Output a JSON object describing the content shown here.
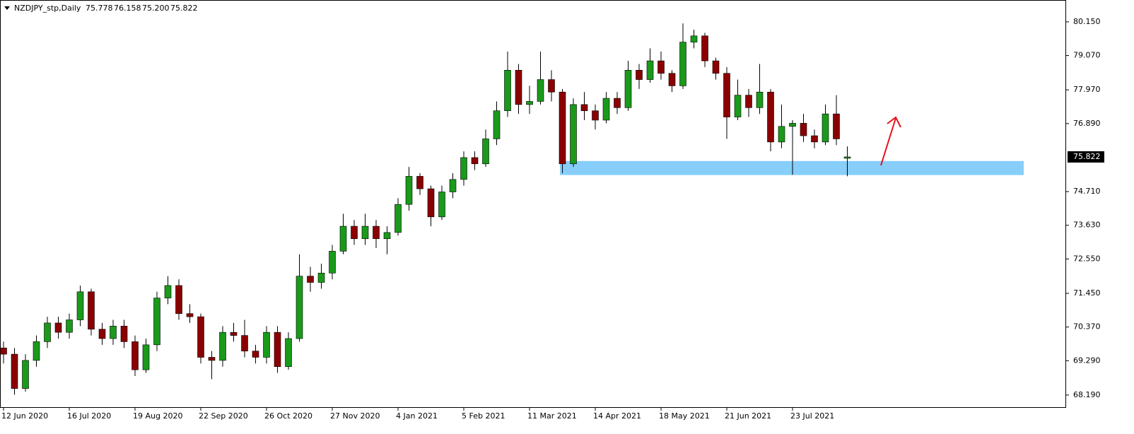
{
  "chart_data": {
    "type": "candlestick",
    "header": {
      "symbol": "NZDJPY_stp,Daily",
      "ohlc": [
        "75.778",
        "76.158",
        "75.200",
        "75.822"
      ]
    },
    "categories": [
      "12 Jun 2020",
      null,
      null,
      null,
      null,
      null,
      "16 Jul 2020",
      null,
      null,
      null,
      null,
      null,
      "19 Aug 2020",
      null,
      null,
      null,
      null,
      null,
      "22 Sep 2020",
      null,
      null,
      null,
      null,
      null,
      "26 Oct 2020",
      null,
      null,
      null,
      null,
      null,
      "27 Nov 2020",
      null,
      null,
      null,
      null,
      null,
      "4 Jan 2021",
      null,
      null,
      null,
      null,
      null,
      "5 Feb 2021",
      null,
      null,
      null,
      null,
      null,
      "11 Mar 2021",
      null,
      null,
      null,
      null,
      null,
      "14 Apr 2021",
      null,
      null,
      null,
      null,
      null,
      "18 May 2021",
      null,
      null,
      null,
      null,
      null,
      "21 Jun 2021",
      null,
      null,
      null,
      null,
      null,
      "23 Jul 2021",
      null,
      null,
      null,
      null,
      null
    ],
    "open": [
      69.7,
      69.5,
      68.4,
      69.3,
      69.9,
      70.5,
      70.2,
      70.6,
      71.5,
      70.3,
      70.0,
      70.4,
      69.9,
      69.0,
      69.8,
      71.3,
      71.7,
      70.8,
      70.7,
      69.4,
      69.3,
      70.2,
      70.1,
      69.6,
      69.4,
      70.2,
      69.1,
      70.0,
      72.0,
      71.8,
      72.1,
      72.8,
      73.6,
      73.2,
      73.6,
      73.2,
      73.4,
      74.3,
      75.2,
      74.8,
      73.9,
      74.7,
      75.1,
      75.8,
      75.6,
      76.4,
      77.3,
      78.6,
      77.5,
      77.6,
      78.3,
      77.9,
      75.6,
      77.5,
      77.3,
      77.0,
      77.7,
      77.4,
      78.6,
      78.3,
      78.9,
      78.5,
      78.1,
      79.5,
      79.7,
      78.9,
      78.5,
      77.1,
      77.8,
      77.4,
      77.9,
      76.3,
      76.8,
      76.9,
      76.5,
      76.3,
      77.2,
      75.778
    ],
    "high": [
      69.9,
      69.7,
      69.5,
      70.1,
      70.7,
      70.7,
      70.8,
      71.7,
      71.6,
      70.5,
      70.6,
      70.6,
      70.1,
      70.0,
      71.5,
      72.0,
      71.9,
      71.1,
      70.8,
      69.6,
      70.4,
      70.5,
      70.6,
      69.8,
      70.4,
      70.4,
      70.2,
      72.7,
      72.3,
      72.4,
      73.0,
      74.0,
      73.8,
      74.0,
      73.8,
      73.6,
      74.5,
      75.5,
      75.3,
      74.9,
      74.9,
      75.3,
      76.0,
      76.0,
      76.7,
      77.6,
      79.2,
      78.8,
      78.1,
      79.2,
      78.6,
      78.0,
      77.7,
      77.9,
      77.5,
      77.9,
      77.9,
      78.9,
      78.8,
      79.3,
      79.2,
      78.6,
      80.1,
      79.9,
      79.8,
      79.0,
      78.7,
      78.3,
      78.0,
      78.8,
      78.0,
      77.5,
      77.0,
      77.2,
      76.7,
      77.5,
      77.8,
      76.158
    ],
    "low": [
      69.2,
      68.2,
      68.3,
      69.1,
      69.7,
      70.0,
      70.0,
      70.4,
      70.1,
      69.8,
      69.8,
      69.7,
      68.8,
      68.9,
      69.6,
      71.1,
      70.6,
      70.5,
      69.2,
      68.7,
      69.1,
      69.9,
      69.4,
      69.2,
      69.2,
      68.9,
      69.0,
      69.9,
      71.5,
      71.6,
      71.9,
      72.7,
      73.0,
      73.0,
      72.9,
      72.7,
      73.3,
      74.1,
      74.6,
      73.6,
      73.8,
      74.5,
      74.9,
      75.4,
      75.5,
      76.2,
      77.1,
      77.2,
      77.2,
      77.5,
      77.6,
      75.3,
      75.5,
      77.0,
      76.7,
      76.9,
      77.2,
      77.3,
      78.0,
      78.2,
      78.3,
      77.9,
      78.0,
      79.3,
      78.7,
      78.3,
      76.4,
      77.0,
      77.1,
      77.2,
      76.0,
      76.1,
      75.25,
      76.3,
      76.1,
      76.2,
      76.2,
      75.2
    ],
    "close": [
      69.5,
      68.4,
      69.3,
      69.9,
      70.5,
      70.2,
      70.6,
      71.5,
      70.3,
      70.0,
      70.4,
      69.9,
      69.0,
      69.8,
      71.3,
      71.7,
      70.8,
      70.7,
      69.4,
      69.3,
      70.2,
      70.1,
      69.6,
      69.4,
      70.2,
      69.1,
      70.0,
      72.0,
      71.8,
      72.1,
      72.8,
      73.6,
      73.2,
      73.6,
      73.2,
      73.4,
      74.3,
      75.2,
      74.8,
      73.9,
      74.7,
      75.1,
      75.8,
      75.6,
      76.4,
      77.3,
      78.6,
      77.5,
      77.6,
      78.3,
      77.9,
      75.6,
      77.5,
      77.3,
      77.0,
      77.7,
      77.4,
      78.6,
      78.3,
      78.9,
      78.5,
      78.1,
      79.5,
      79.7,
      78.9,
      78.5,
      77.1,
      77.8,
      77.4,
      77.9,
      76.3,
      76.8,
      76.9,
      76.5,
      76.3,
      77.2,
      76.4,
      75.822
    ],
    "up_color": "#1a9a1a",
    "down_color": "#8b0000",
    "ylim": [
      67.78,
      80.85
    ],
    "yticks": [
      {
        "value": 80.15,
        "label": "80.150"
      },
      {
        "value": 79.07,
        "label": "79.070"
      },
      {
        "value": 77.97,
        "label": "77.970"
      },
      {
        "value": 76.89,
        "label": "76.890"
      },
      {
        "value": 74.71,
        "label": "74.710"
      },
      {
        "value": 73.63,
        "label": "73.630"
      },
      {
        "value": 72.55,
        "label": "72.550"
      },
      {
        "value": 71.45,
        "label": "71.450"
      },
      {
        "value": 70.37,
        "label": "70.370"
      },
      {
        "value": 69.29,
        "label": "69.290"
      },
      {
        "value": 68.19,
        "label": "68.190"
      }
    ],
    "current_price": {
      "value": 75.822,
      "label": "75.822"
    },
    "zone": {
      "low": 75.24,
      "high": 75.69,
      "color": "#87cefa"
    }
  }
}
